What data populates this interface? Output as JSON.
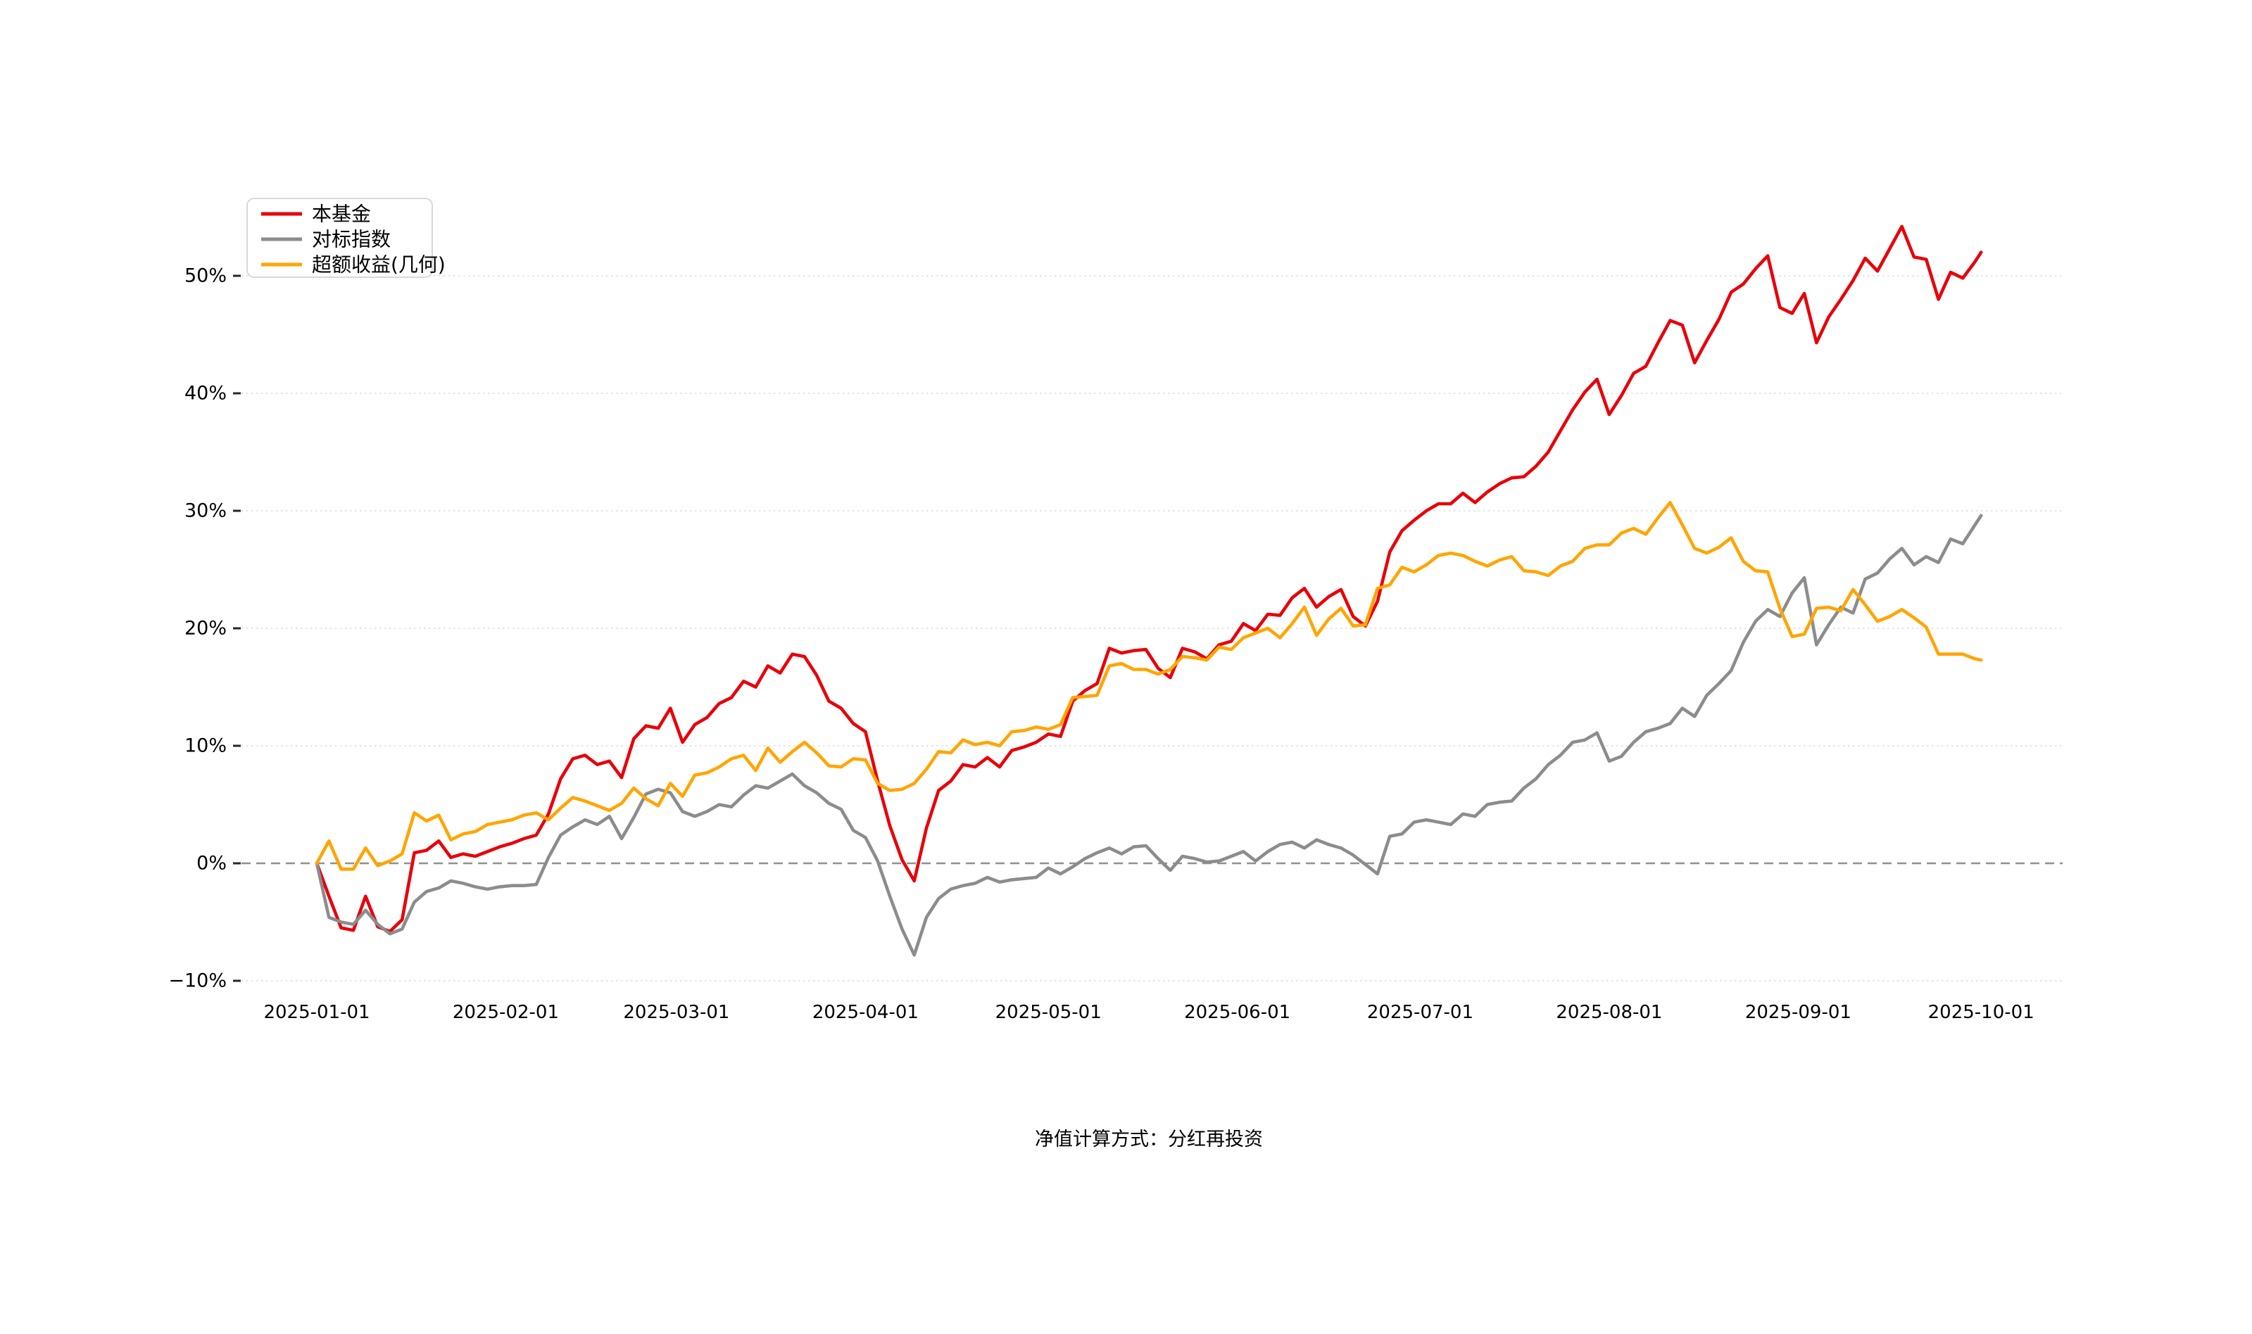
{
  "caption": "净值计算方式：分红再投资",
  "legend": {
    "items": [
      {
        "label": "本基金",
        "color": "#e8000a"
      },
      {
        "label": "对标指数",
        "color": "#8c8c8c"
      },
      {
        "label": "超额收益(几何)",
        "color": "#ffa500"
      }
    ]
  },
  "colors": {
    "fund": "#e8000a",
    "benchmark": "#8c8c8c",
    "excess": "#ffa500",
    "zero_line": "#909090",
    "grid_line": "#e4e4e4",
    "text": "#000000"
  },
  "chart_data": {
    "type": "line",
    "title": "",
    "xlabel": "",
    "ylabel": "",
    "x_unit": "days since 2025-01-01",
    "ylim": [
      -13,
      57
    ],
    "grid": true,
    "zero_line_style": "dashed",
    "legend_position": "upper-left",
    "x_ticks": [
      {
        "day": 0,
        "label": "2025-01-01"
      },
      {
        "day": 31,
        "label": "2025-02-01"
      },
      {
        "day": 59,
        "label": "2025-03-01"
      },
      {
        "day": 90,
        "label": "2025-04-01"
      },
      {
        "day": 120,
        "label": "2025-05-01"
      },
      {
        "day": 151,
        "label": "2025-06-01"
      },
      {
        "day": 181,
        "label": "2025-07-01"
      },
      {
        "day": 212,
        "label": "2025-08-01"
      },
      {
        "day": 243,
        "label": "2025-09-01"
      },
      {
        "day": 273,
        "label": "2025-10-01"
      }
    ],
    "y_ticks": [
      {
        "value": -10,
        "label": "−10%"
      },
      {
        "value": 0,
        "label": "0%"
      },
      {
        "value": 10,
        "label": "10%"
      },
      {
        "value": 20,
        "label": "20%"
      },
      {
        "value": 30,
        "label": "30%"
      },
      {
        "value": 40,
        "label": "40%"
      },
      {
        "value": 50,
        "label": "50%"
      }
    ],
    "days": [
      0,
      2,
      4,
      6,
      8,
      10,
      12,
      14,
      16,
      18,
      20,
      22,
      24,
      26,
      28,
      30,
      32,
      34,
      36,
      38,
      40,
      42,
      44,
      46,
      48,
      50,
      52,
      54,
      56,
      58,
      60,
      62,
      64,
      66,
      68,
      70,
      72,
      74,
      76,
      78,
      80,
      82,
      84,
      86,
      88,
      90,
      92,
      94,
      96,
      98,
      100,
      102,
      104,
      106,
      108,
      110,
      112,
      114,
      116,
      118,
      120,
      122,
      124,
      126,
      128,
      130,
      132,
      134,
      136,
      138,
      140,
      142,
      144,
      146,
      148,
      150,
      152,
      154,
      156,
      158,
      160,
      162,
      164,
      166,
      168,
      170,
      172,
      174,
      176,
      178,
      180,
      182,
      184,
      186,
      188,
      190,
      192,
      194,
      196,
      198,
      200,
      202,
      204,
      206,
      208,
      210,
      212,
      214,
      216,
      218,
      220,
      222,
      224,
      226,
      228,
      230,
      232,
      234,
      236,
      238,
      240,
      242,
      244,
      246,
      248,
      250,
      252,
      254,
      256,
      258,
      260,
      262,
      264,
      266,
      268,
      270,
      272,
      273
    ],
    "series": [
      {
        "name": "本基金",
        "color": "#e8000a",
        "values": [
          0.0,
          -2.8,
          -5.5,
          -5.7,
          -2.8,
          -5.4,
          -5.8,
          -4.8,
          0.9,
          1.1,
          1.9,
          0.5,
          0.8,
          0.6,
          1.0,
          1.4,
          1.7,
          2.1,
          2.4,
          4.2,
          7.2,
          8.9,
          9.2,
          8.4,
          8.7,
          7.3,
          10.6,
          11.7,
          11.5,
          13.2,
          10.3,
          11.8,
          12.4,
          13.6,
          14.1,
          15.5,
          15.0,
          16.8,
          16.2,
          17.8,
          17.6,
          16.0,
          13.8,
          13.2,
          11.9,
          11.2,
          7.0,
          3.2,
          0.3,
          -1.5,
          3.0,
          6.2,
          7.0,
          8.4,
          8.2,
          9.0,
          8.2,
          9.6,
          9.9,
          10.3,
          11.0,
          10.8,
          13.8,
          14.7,
          15.3,
          18.3,
          17.9,
          18.1,
          18.2,
          16.6,
          15.8,
          18.3,
          18.0,
          17.4,
          18.6,
          18.9,
          20.4,
          19.8,
          21.2,
          21.1,
          22.6,
          23.4,
          21.8,
          22.7,
          23.3,
          21.0,
          20.2,
          22.3,
          26.5,
          28.3,
          29.2,
          30.0,
          30.6,
          30.6,
          31.5,
          30.7,
          31.6,
          32.3,
          32.8,
          32.9,
          33.8,
          35.0,
          36.8,
          38.6,
          40.1,
          41.2,
          38.2,
          39.8,
          41.7,
          42.3,
          44.3,
          46.2,
          45.8,
          42.6,
          44.5,
          46.3,
          48.6,
          49.3,
          50.6,
          51.7,
          47.3,
          46.8,
          48.5,
          44.3,
          46.5,
          48.0,
          49.6,
          51.5,
          50.4,
          52.3,
          54.2,
          51.6,
          51.4,
          48.0,
          50.3,
          49.8,
          51.2,
          52.0
        ]
      },
      {
        "name": "对标指数",
        "color": "#8c8c8c",
        "values": [
          0.0,
          -4.6,
          -5.0,
          -5.2,
          -4.0,
          -5.2,
          -6.0,
          -5.6,
          -3.3,
          -2.4,
          -2.1,
          -1.5,
          -1.7,
          -2.0,
          -2.2,
          -2.0,
          -1.9,
          -1.9,
          -1.8,
          0.5,
          2.4,
          3.1,
          3.7,
          3.3,
          4.0,
          2.1,
          3.9,
          5.9,
          6.3,
          6.0,
          4.4,
          4.0,
          4.4,
          5.0,
          4.8,
          5.8,
          6.6,
          6.4,
          7.0,
          7.6,
          6.6,
          6.0,
          5.1,
          4.6,
          2.8,
          2.2,
          0.2,
          -2.8,
          -5.6,
          -7.8,
          -4.6,
          -3.0,
          -2.2,
          -1.9,
          -1.7,
          -1.2,
          -1.6,
          -1.4,
          -1.3,
          -1.2,
          -0.4,
          -0.9,
          -0.3,
          0.4,
          0.9,
          1.3,
          0.8,
          1.4,
          1.5,
          0.4,
          -0.6,
          0.6,
          0.4,
          0.1,
          0.2,
          0.6,
          1.0,
          0.2,
          1.0,
          1.6,
          1.8,
          1.3,
          2.0,
          1.6,
          1.3,
          0.7,
          -0.1,
          -0.9,
          2.3,
          2.5,
          3.5,
          3.7,
          3.5,
          3.3,
          4.2,
          4.0,
          5.0,
          5.2,
          5.3,
          6.4,
          7.2,
          8.4,
          9.2,
          10.3,
          10.5,
          11.1,
          8.7,
          9.1,
          10.3,
          11.2,
          11.5,
          11.9,
          13.2,
          12.5,
          14.3,
          15.3,
          16.4,
          18.8,
          20.6,
          21.6,
          21.0,
          23.0,
          24.3,
          18.6,
          20.3,
          21.8,
          21.3,
          24.2,
          24.7,
          25.9,
          26.8,
          25.4,
          26.1,
          25.6,
          27.6,
          27.2,
          28.8,
          29.6
        ]
      },
      {
        "name": "超额收益(几何)",
        "color": "#ffa500",
        "values": [
          0.0,
          1.9,
          -0.5,
          -0.5,
          1.3,
          -0.2,
          0.2,
          0.8,
          4.3,
          3.6,
          4.1,
          2.0,
          2.5,
          2.7,
          3.3,
          3.5,
          3.7,
          4.1,
          4.3,
          3.7,
          4.7,
          5.6,
          5.3,
          4.9,
          4.5,
          5.1,
          6.4,
          5.5,
          4.9,
          6.8,
          5.7,
          7.5,
          7.7,
          8.2,
          8.9,
          9.2,
          7.9,
          9.8,
          8.6,
          9.5,
          10.3,
          9.4,
          8.3,
          8.2,
          8.9,
          8.8,
          6.8,
          6.2,
          6.3,
          6.8,
          8.0,
          9.5,
          9.4,
          10.5,
          10.1,
          10.3,
          10.0,
          11.2,
          11.3,
          11.6,
          11.4,
          11.8,
          14.1,
          14.2,
          14.3,
          16.8,
          17.0,
          16.5,
          16.5,
          16.1,
          16.5,
          17.6,
          17.5,
          17.3,
          18.4,
          18.2,
          19.2,
          19.6,
          20.0,
          19.2,
          20.4,
          21.8,
          19.4,
          20.8,
          21.7,
          20.2,
          20.3,
          23.4,
          23.7,
          25.2,
          24.8,
          25.4,
          26.2,
          26.4,
          26.2,
          25.7,
          25.3,
          25.8,
          26.1,
          24.9,
          24.8,
          24.5,
          25.3,
          25.7,
          26.8,
          27.1,
          27.1,
          28.1,
          28.5,
          28.0,
          29.4,
          30.7,
          28.8,
          26.8,
          26.4,
          26.9,
          27.7,
          25.7,
          24.9,
          24.8,
          21.7,
          19.3,
          19.5,
          21.7,
          21.8,
          21.5,
          23.3,
          22.0,
          20.6,
          21.0,
          21.6,
          20.9,
          20.1,
          17.8,
          17.8,
          17.8,
          17.4,
          17.3
        ]
      }
    ]
  }
}
